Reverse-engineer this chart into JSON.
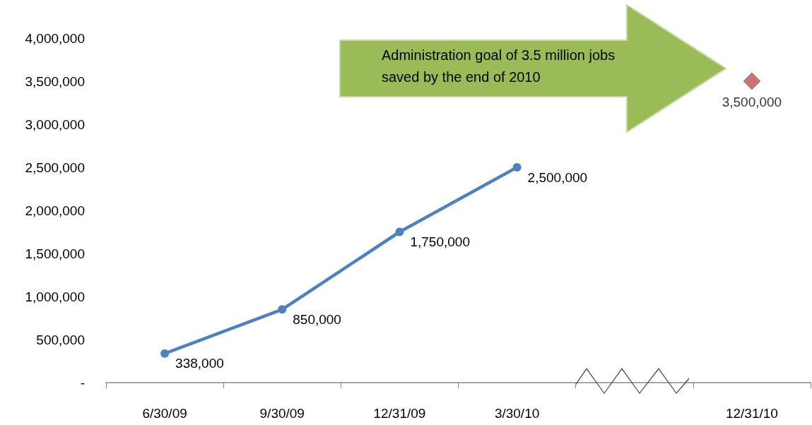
{
  "chart_data": {
    "type": "line",
    "categories": [
      "6/30/09",
      "9/30/09",
      "12/31/09",
      "3/30/10",
      null,
      "12/31/10"
    ],
    "series": [
      {
        "type": "line",
        "color": "#4f81bd",
        "marker": "circle",
        "line_style": "solid",
        "values": [
          338000,
          850000,
          1750000,
          2500000,
          null,
          null
        ],
        "value_labels": [
          "338,000",
          "850,000",
          "1,750,000",
          "2,500,000",
          null,
          null
        ]
      },
      {
        "type": "scatter",
        "color": "#c0504d",
        "marker": "diamond",
        "x": [
          "12/31/10"
        ],
        "values": [
          3500000
        ],
        "value_labels": [
          "3,500,000"
        ]
      }
    ],
    "ylim": [
      0,
      4000000
    ],
    "yticks": [
      {
        "value": 0,
        "label": "-"
      },
      {
        "value": 500000,
        "label": "500,000"
      },
      {
        "value": 1000000,
        "label": "1,000,000"
      },
      {
        "value": 1500000,
        "label": "1,500,000"
      },
      {
        "value": 2000000,
        "label": "2,000,000"
      },
      {
        "value": 2500000,
        "label": "2,500,000"
      },
      {
        "value": 3000000,
        "label": "3,000,000"
      },
      {
        "value": 3500000,
        "label": "3,500,000"
      },
      {
        "value": 4000000,
        "label": "4,000,000"
      }
    ],
    "grid": false,
    "annotations": [
      "Administration goal of 3.5 million jobs saved by the end of 2010"
    ]
  }
}
